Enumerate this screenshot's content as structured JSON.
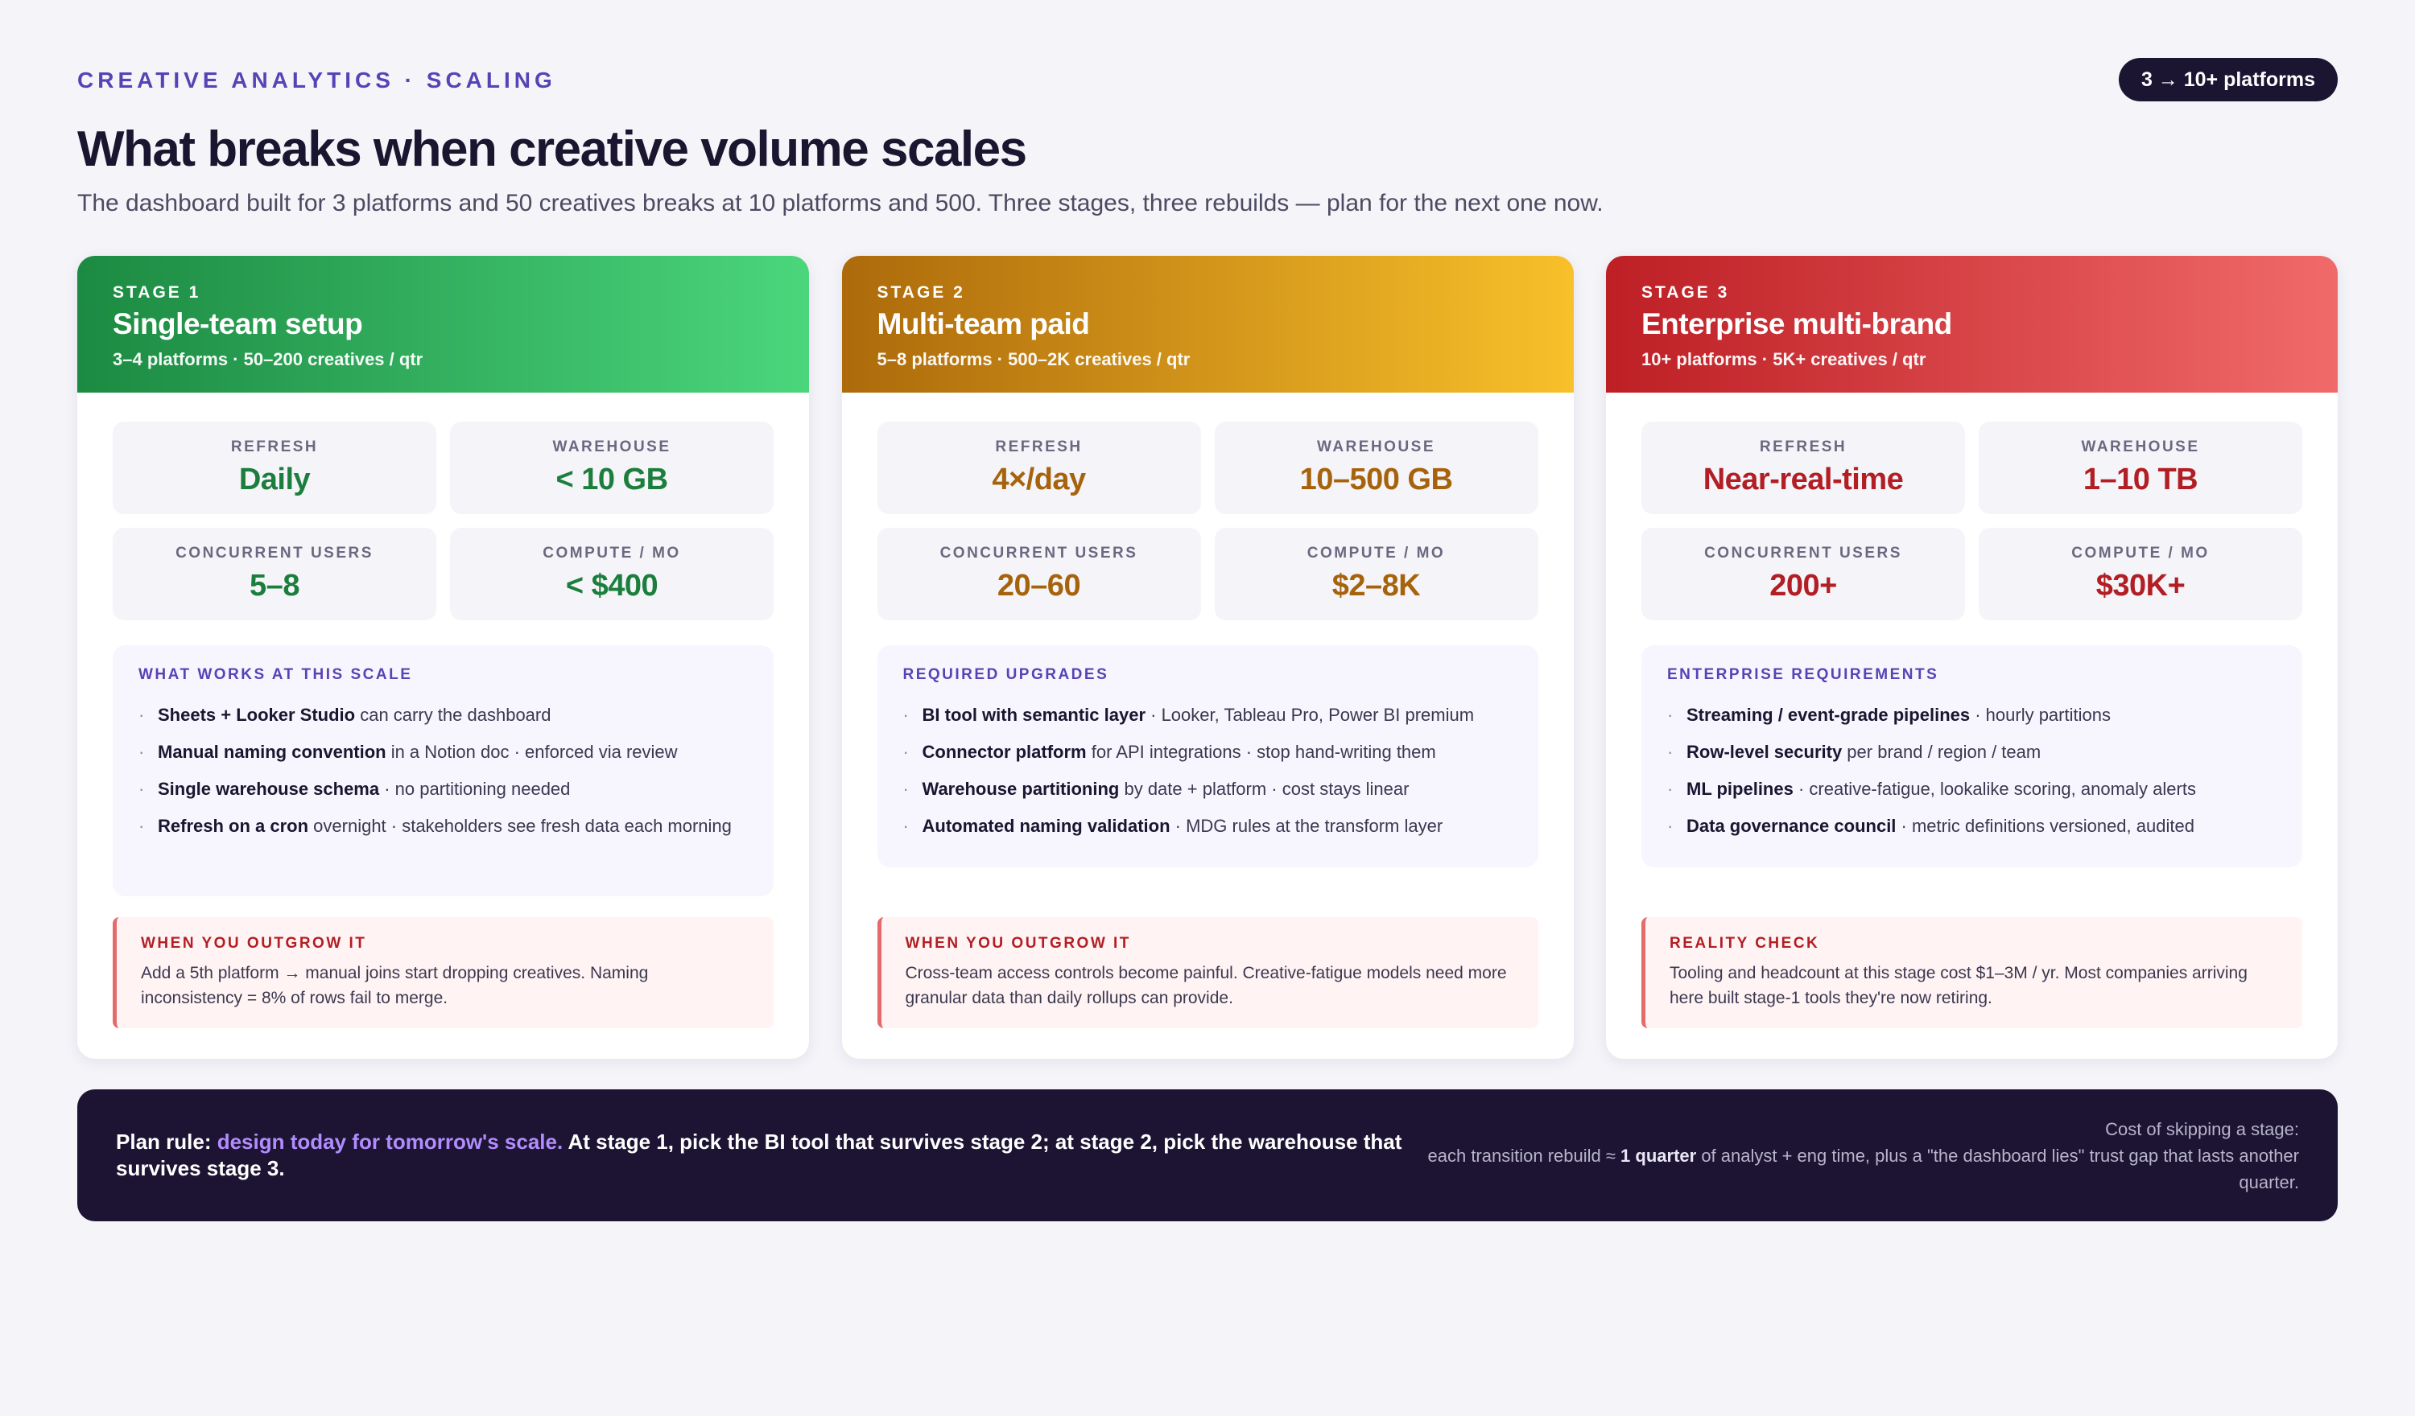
{
  "header": {
    "eyebrow": "CREATIVE ANALYTICS · SCALING",
    "badge": "3 → 10+ platforms",
    "title": "What breaks when creative volume scales",
    "subtitle": "The dashboard built for 3 platforms and 50 creatives breaks at 10 platforms and 500. Three stages, three rebuilds — plan for the next one now."
  },
  "colors": {
    "stage1_gradient": [
      "#1c8a42",
      "#4bd67c"
    ],
    "stage2_gradient": [
      "#ad6a0b",
      "#f8c02a"
    ],
    "stage3_gradient": [
      "#bd1f25",
      "#f16a6a"
    ],
    "accent": "#5842b6"
  },
  "stages": [
    {
      "number": "STAGE 1",
      "name": "Single-team setup",
      "meta": "3–4 platforms · 50–200 creatives / qtr",
      "metrics": [
        {
          "label": "REFRESH",
          "value": "Daily"
        },
        {
          "label": "WAREHOUSE",
          "value": "< 10 GB"
        },
        {
          "label": "CONCURRENT USERS",
          "value": "5–8"
        },
        {
          "label": "COMPUTE / MO",
          "value": "< $400"
        }
      ],
      "list_title": "WHAT WORKS AT THIS SCALE",
      "items": [
        {
          "strong": "Sheets + Looker Studio",
          "rest": " can carry the dashboard"
        },
        {
          "strong": "Manual naming convention",
          "rest": " in a Notion doc · enforced via review"
        },
        {
          "strong": "Single warehouse schema",
          "rest": " · no partitioning needed"
        },
        {
          "strong": "Refresh on a cron",
          "rest": " overnight · stakeholders see fresh data each morning"
        }
      ],
      "callout_title": "WHEN YOU OUTGROW IT",
      "callout_text": "Add a 5th platform → manual joins start dropping creatives. Naming inconsistency = 8% of rows fail to merge."
    },
    {
      "number": "STAGE 2",
      "name": "Multi-team paid",
      "meta": "5–8 platforms · 500–2K creatives / qtr",
      "metrics": [
        {
          "label": "REFRESH",
          "value": "4×/day"
        },
        {
          "label": "WAREHOUSE",
          "value": "10–500 GB"
        },
        {
          "label": "CONCURRENT USERS",
          "value": "20–60"
        },
        {
          "label": "COMPUTE / MO",
          "value": "$2–8K"
        }
      ],
      "list_title": "REQUIRED UPGRADES",
      "items": [
        {
          "strong": "BI tool with semantic layer",
          "rest": " · Looker, Tableau Pro, Power BI premium"
        },
        {
          "strong": "Connector platform",
          "rest": " for API integrations · stop hand-writing them"
        },
        {
          "strong": "Warehouse partitioning",
          "rest": " by date + platform · cost stays linear"
        },
        {
          "strong": "Automated naming validation",
          "rest": " · MDG rules at the transform layer"
        }
      ],
      "callout_title": "WHEN YOU OUTGROW IT",
      "callout_text": "Cross-team access controls become painful. Creative-fatigue models need more granular data than daily rollups can provide."
    },
    {
      "number": "STAGE 3",
      "name": "Enterprise multi-brand",
      "meta": "10+ platforms · 5K+ creatives / qtr",
      "metrics": [
        {
          "label": "REFRESH",
          "value": "Near-real-time"
        },
        {
          "label": "WAREHOUSE",
          "value": "1–10 TB"
        },
        {
          "label": "CONCURRENT USERS",
          "value": "200+"
        },
        {
          "label": "COMPUTE / MO",
          "value": "$30K+"
        }
      ],
      "list_title": "ENTERPRISE REQUIREMENTS",
      "items": [
        {
          "strong": "Streaming / event-grade pipelines",
          "rest": " · hourly partitions"
        },
        {
          "strong": "Row-level security",
          "rest": " per brand / region / team"
        },
        {
          "strong": "ML pipelines",
          "rest": " · creative-fatigue, lookalike scoring, anomaly alerts"
        },
        {
          "strong": "Data governance council",
          "rest": " · metric definitions versioned, audited"
        }
      ],
      "callout_title": "REALITY CHECK",
      "callout_text": "Tooling and headcount at this stage cost $1–3M / yr. Most companies arriving here built stage-1 tools they're now retiring."
    }
  ],
  "footer": {
    "rule_prefix": "Plan rule: ",
    "rule_accent": "design today for tomorrow's scale.",
    "rule_rest": " At stage 1, pick the BI tool that survives stage 2; at stage 2, pick the warehouse that survives stage 3.",
    "cost_line1": "Cost of skipping a stage:",
    "cost_pre": "each transition rebuild ≈ ",
    "cost_strong": "1 quarter",
    "cost_post": " of analyst + eng time, plus a \"the dashboard lies\" trust gap that lasts another quarter."
  }
}
